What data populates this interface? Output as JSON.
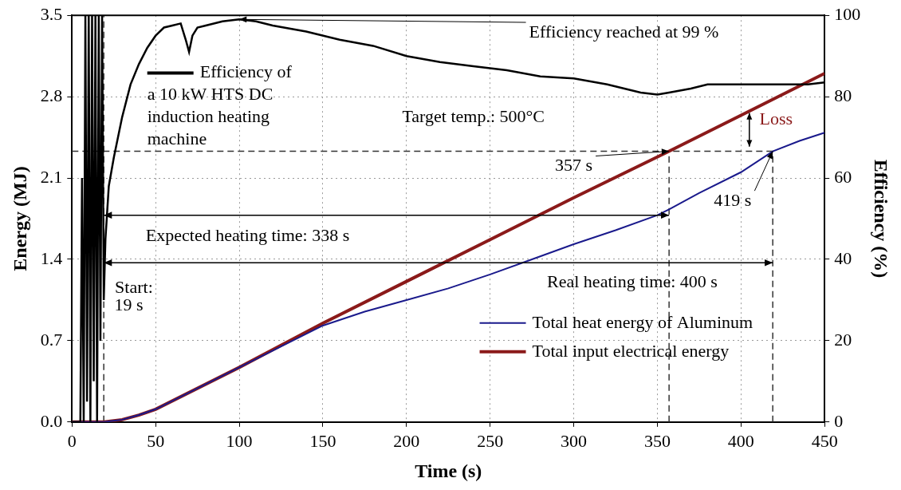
{
  "chart_data": {
    "type": "line",
    "x_label": "Time (s)",
    "y_label": "Energy (MJ)",
    "y2_label": "Efficiency (%)",
    "xlim": [
      0,
      450
    ],
    "xticks": [
      0,
      50,
      100,
      150,
      200,
      250,
      300,
      350,
      400,
      450
    ],
    "ylim": [
      0,
      3.5
    ],
    "yticks": [
      {
        "value": 0,
        "label": "0.0"
      },
      0.7,
      1.4,
      2.1,
      2.8,
      3.5
    ],
    "y2lim": [
      0,
      100
    ],
    "y2ticks": [
      0,
      20,
      40,
      60,
      80,
      100
    ],
    "grid": true,
    "legend": "lower right",
    "series": [
      {
        "name": "Efficiency of\na 10 kW HTS DC\ninduction heating\nmachine",
        "color": "#000000",
        "axis": "y2",
        "x": [
          0,
          5,
          6,
          7,
          8,
          9,
          10,
          11,
          12,
          13,
          14,
          15,
          16,
          17,
          18,
          19,
          20,
          22,
          25,
          30,
          35,
          40,
          45,
          50,
          55,
          60,
          65,
          68,
          70,
          72,
          75,
          80,
          90,
          100,
          110,
          120,
          140,
          160,
          180,
          200,
          220,
          240,
          260,
          280,
          300,
          320,
          340,
          350,
          357,
          370,
          380,
          400,
          420,
          440,
          450
        ],
        "values": [
          0,
          0,
          60,
          0,
          100,
          5,
          100,
          0,
          100,
          10,
          100,
          0,
          100,
          20,
          100,
          30,
          45,
          58,
          65,
          75,
          83,
          88,
          92,
          95,
          97,
          97.5,
          98,
          94,
          91,
          95,
          97,
          97.5,
          98.5,
          99,
          98.5,
          97.5,
          96,
          94,
          92.5,
          90,
          88.5,
          87.5,
          86.5,
          85,
          84.5,
          83,
          81,
          80.5,
          81,
          82,
          83,
          83,
          83,
          83,
          83.5
        ]
      },
      {
        "name": "Total heat energy of Aluminum",
        "color": "#1a1a8c",
        "x": [
          0,
          19,
          30,
          40,
          50,
          100,
          150,
          175,
          200,
          225,
          250,
          275,
          300,
          325,
          350,
          357,
          375,
          400,
          419,
          435,
          450
        ],
        "values": [
          0,
          0,
          0.02,
          0.06,
          0.11,
          0.47,
          0.83,
          0.95,
          1.05,
          1.15,
          1.27,
          1.4,
          1.53,
          1.65,
          1.78,
          1.83,
          1.97,
          2.15,
          2.33,
          2.42,
          2.49
        ]
      },
      {
        "name": "Total input electrical energy",
        "color": "#8b1a1a",
        "x": [
          0,
          19,
          30,
          40,
          50,
          100,
          150,
          200,
          250,
          300,
          357,
          400,
          450
        ],
        "values": [
          0,
          0,
          0.02,
          0.06,
          0.11,
          0.47,
          0.85,
          1.21,
          1.57,
          1.93,
          2.33,
          2.64,
          3.0
        ]
      }
    ],
    "reference_lines": [
      {
        "axis": "y",
        "value": 2.33,
        "x_end": 419
      },
      {
        "axis": "x",
        "value": 19
      },
      {
        "axis": "x",
        "value": 357,
        "y_end": 2.33
      },
      {
        "axis": "x",
        "value": 419,
        "y_end": 2.33
      }
    ],
    "spans": [
      {
        "text": "Expected heating time: 338 s",
        "from": 19,
        "to": 357,
        "y": 1.78,
        "text_x": 105,
        "text_y": 1.6
      },
      {
        "text": "Real heating time: 400 s",
        "from": 19,
        "to": 419,
        "y": 1.37,
        "text_x": 335,
        "text_y": 1.2
      }
    ],
    "double_arrows": [
      {
        "x": 405,
        "from": 2.37,
        "to": 2.66
      }
    ],
    "annotations": [
      {
        "text": "Efficiency reached at 99 %",
        "x": 330,
        "y": 3.35,
        "arrow_to": {
          "x": 100,
          "y2": 99
        }
      },
      {
        "text": "Target temp.: 500°C",
        "x": 240,
        "y": 2.62
      },
      {
        "text": "357 s",
        "x": 300,
        "y": 2.2,
        "arrow_to": {
          "x": 357,
          "y": 2.33
        }
      },
      {
        "text": "419 s",
        "x": 395,
        "y": 1.9,
        "arrow_to": {
          "x": 419,
          "y": 2.33
        }
      },
      {
        "text": "Start:",
        "x": 37,
        "y": 1.15
      },
      {
        "text": "19 s",
        "x": 34,
        "y": 1.0
      },
      {
        "text": "Loss",
        "x": 421,
        "y": 2.6,
        "color": "#8b1a1a"
      }
    ]
  }
}
